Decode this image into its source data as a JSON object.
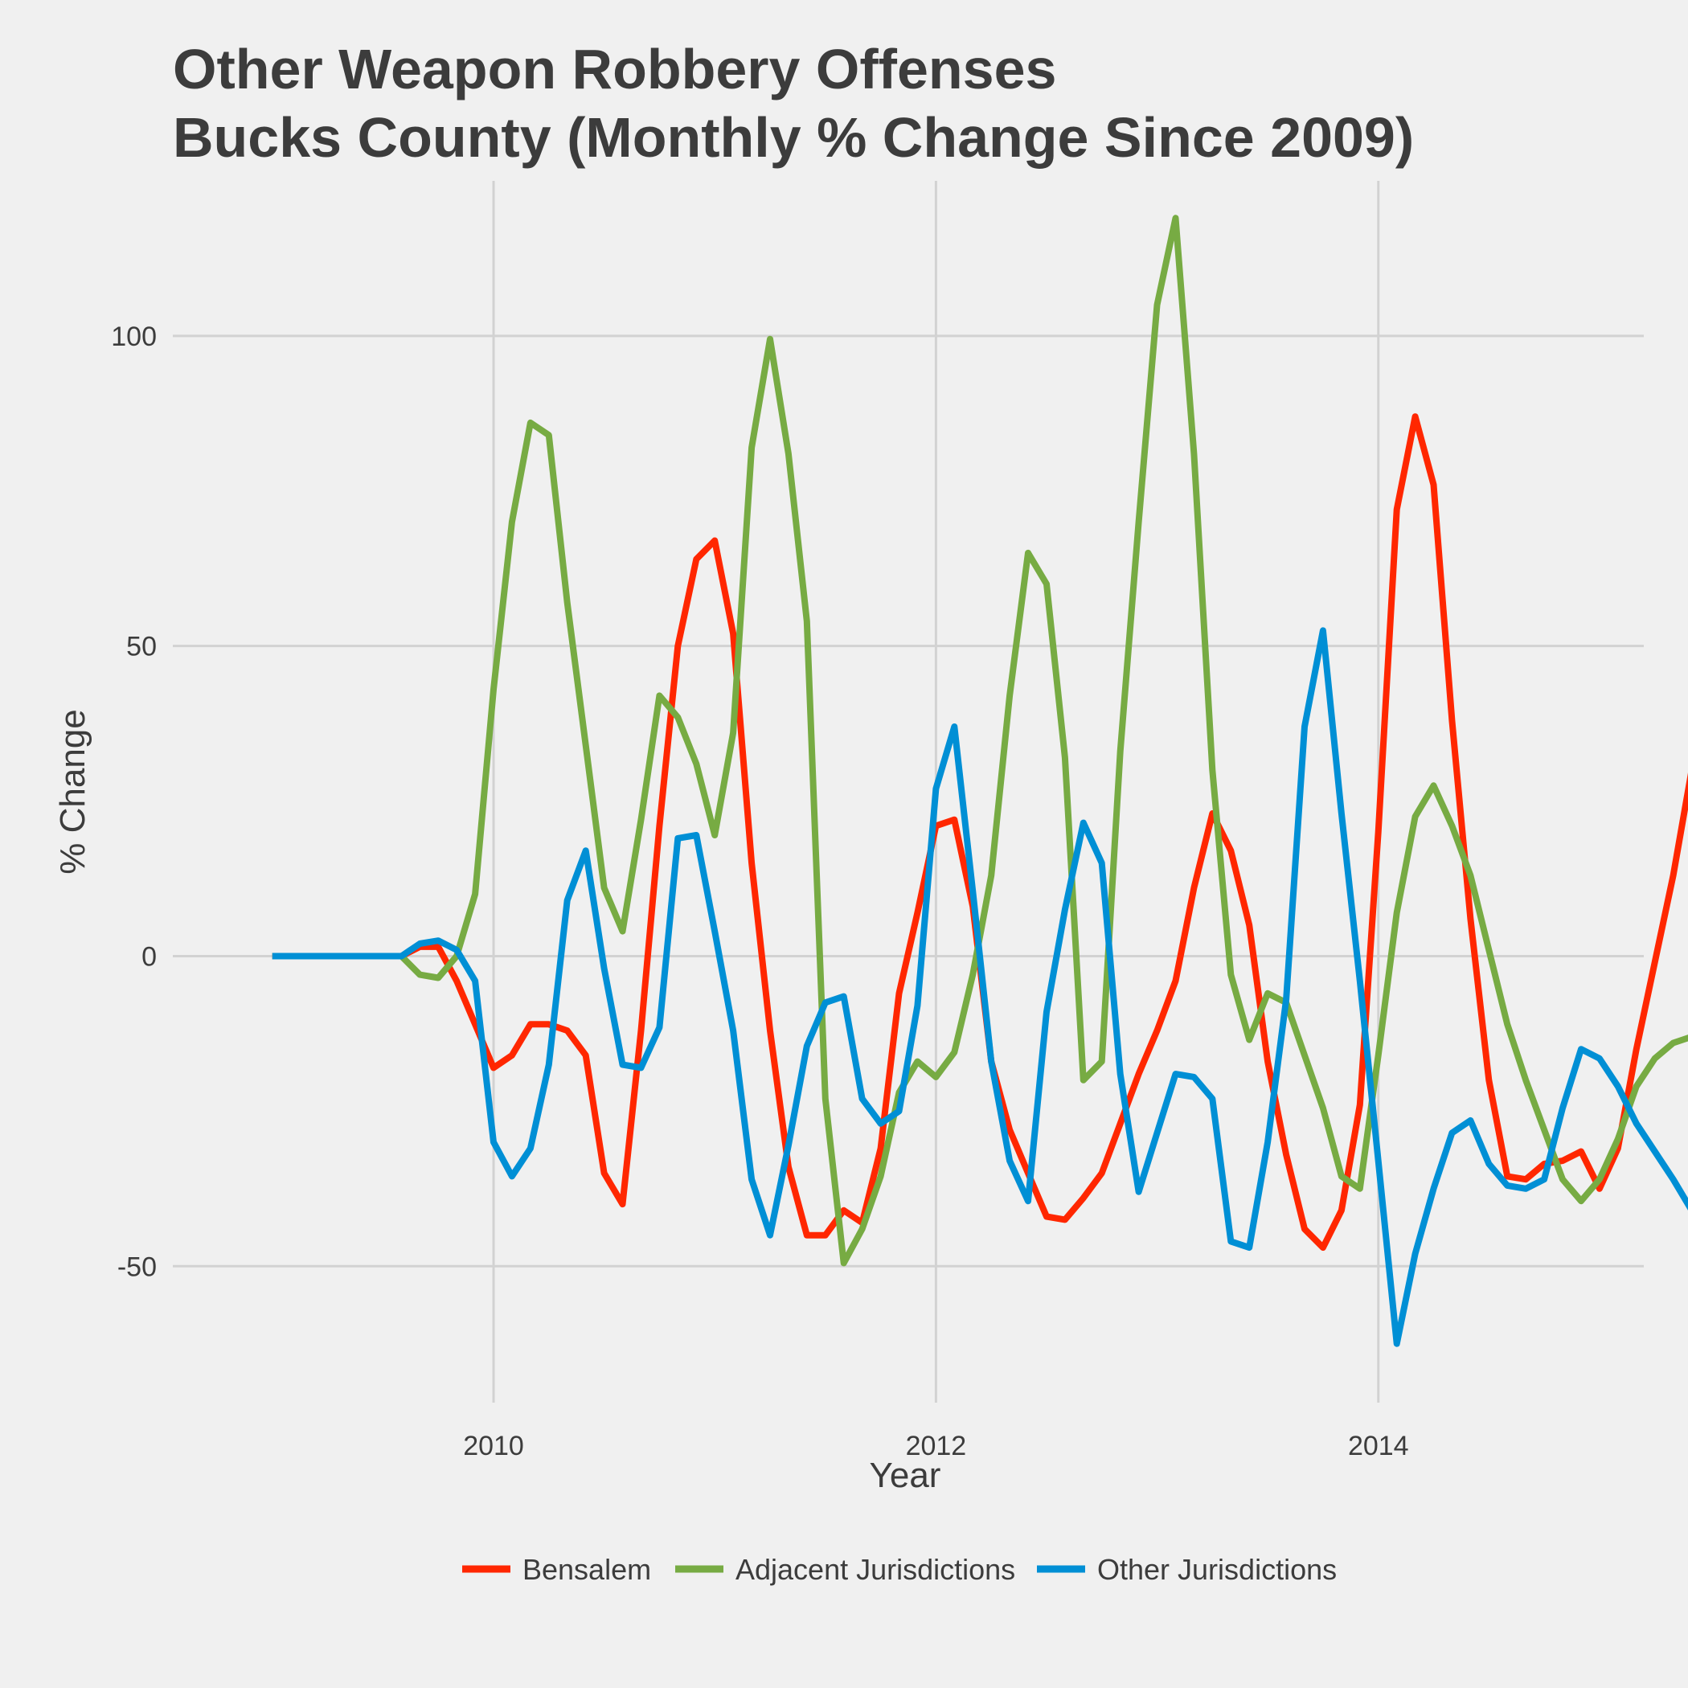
{
  "chart_data": {
    "type": "line",
    "title_lines": [
      "Other Weapon Robbery Offenses",
      "Bucks County (Monthly % Change Since 2009)"
    ],
    "xlabel": "Year",
    "ylabel": "% Change",
    "x_start": 2009,
    "x_step": 0.08333,
    "xlim": [
      2008.55,
      2015.2
    ],
    "ylim": [
      -72,
      125
    ],
    "x_ticks": [
      2010,
      2012,
      2014
    ],
    "y_ticks": [
      -50,
      0,
      50,
      100
    ],
    "grid": true,
    "legend_position": "bottom",
    "series": [
      {
        "name": "Bensalem",
        "color": "#ff2700",
        "values": [
          0,
          0,
          0,
          0,
          0,
          0,
          0,
          0,
          1.5,
          1.5,
          -4,
          -11,
          -18,
          -16,
          -11,
          -11,
          -12,
          -16,
          -35,
          -40,
          -12,
          21,
          50,
          64,
          67,
          52,
          15,
          -12,
          -34,
          -45,
          -45,
          -41,
          -43,
          -31,
          -6,
          7,
          21,
          22,
          8,
          -17,
          -28,
          -35,
          -42,
          -42.5,
          -39,
          -35,
          -27,
          -19,
          -12,
          -4,
          11,
          23,
          17,
          5,
          -17,
          -32,
          -44,
          -47,
          -41,
          -24,
          20,
          72,
          87,
          76,
          38,
          6,
          -20,
          -35.5,
          -36,
          -33.5,
          -33,
          -31.5,
          -37.5,
          -31,
          -15,
          -1,
          13,
          30,
          51,
          73
        ]
      },
      {
        "name": "Adjacent Jurisdictions",
        "color": "#77ab43",
        "values": [
          0,
          0,
          0,
          0,
          0,
          0,
          0,
          0,
          -3,
          -3.5,
          0,
          10,
          43,
          70,
          86,
          84,
          57,
          34,
          11,
          4,
          22,
          42,
          38.5,
          31,
          19.5,
          36,
          82,
          99.5,
          81,
          54,
          -23,
          -49.5,
          -44,
          -35.5,
          -22,
          -17,
          -19.5,
          -15.5,
          -3,
          13,
          42,
          65,
          60,
          32,
          -20,
          -17,
          33,
          70,
          105,
          119,
          81,
          30,
          -3,
          -13.5,
          -6,
          -7.5,
          -16,
          -24.5,
          -35.5,
          -37.5,
          -16,
          7,
          22.5,
          27.5,
          21,
          13,
          1,
          -11,
          -20,
          -28,
          -36,
          -39.5,
          -36,
          -29.5,
          -21,
          -16.5,
          -14,
          -13,
          -13,
          -15
        ]
      },
      {
        "name": "Other Jurisdictions",
        "color": "#008fd5",
        "values": [
          0,
          0,
          0,
          0,
          0,
          0,
          0,
          0,
          2,
          2.5,
          1,
          -4,
          -30,
          -35.5,
          -31,
          -17.5,
          9,
          17,
          -2,
          -17.5,
          -18,
          -11.5,
          19,
          19.5,
          4,
          -12,
          -36,
          -45,
          -30.5,
          -14.5,
          -7.5,
          -6.5,
          -23,
          -27,
          -25,
          -8,
          27,
          37,
          10.5,
          -17,
          -33,
          -39.5,
          -9,
          7.5,
          21.5,
          15,
          -19,
          -38,
          -28.5,
          -19,
          -19.5,
          -23,
          -46,
          -47,
          -30,
          -7,
          37,
          52.5,
          23,
          -4,
          -33,
          -62.5,
          -48,
          -37.5,
          -28.5,
          -26.5,
          -33.5,
          -37,
          -37.5,
          -36,
          -24.5,
          -15,
          -16.5,
          -21,
          -27,
          -31.5,
          -36,
          -41,
          -46,
          -52
        ]
      }
    ]
  }
}
